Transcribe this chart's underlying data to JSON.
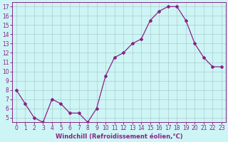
{
  "x": [
    0,
    1,
    2,
    3,
    4,
    5,
    6,
    7,
    8,
    9,
    10,
    11,
    12,
    13,
    14,
    15,
    16,
    17,
    18,
    19,
    20,
    21,
    22,
    23
  ],
  "y": [
    8.0,
    6.5,
    5.0,
    4.5,
    7.0,
    6.5,
    5.5,
    5.5,
    4.5,
    6.0,
    9.5,
    11.5,
    12.0,
    13.0,
    13.5,
    15.5,
    16.5,
    17.0,
    17.0,
    15.5,
    13.0,
    11.5,
    10.5,
    10.5
  ],
  "line_color": "#882288",
  "marker": "D",
  "markersize": 2.0,
  "linewidth": 0.9,
  "xlabel": "Windchill (Refroidissement éolien,°C)",
  "yticks": [
    5,
    6,
    7,
    8,
    9,
    10,
    11,
    12,
    13,
    14,
    15,
    16,
    17
  ],
  "xlim": [
    -0.5,
    23.5
  ],
  "ylim": [
    4.5,
    17.5
  ],
  "bg_color": "#cef5f5",
  "grid_color": "#aacccc",
  "xlabel_fontsize": 6.0,
  "tick_fontsize": 5.5
}
